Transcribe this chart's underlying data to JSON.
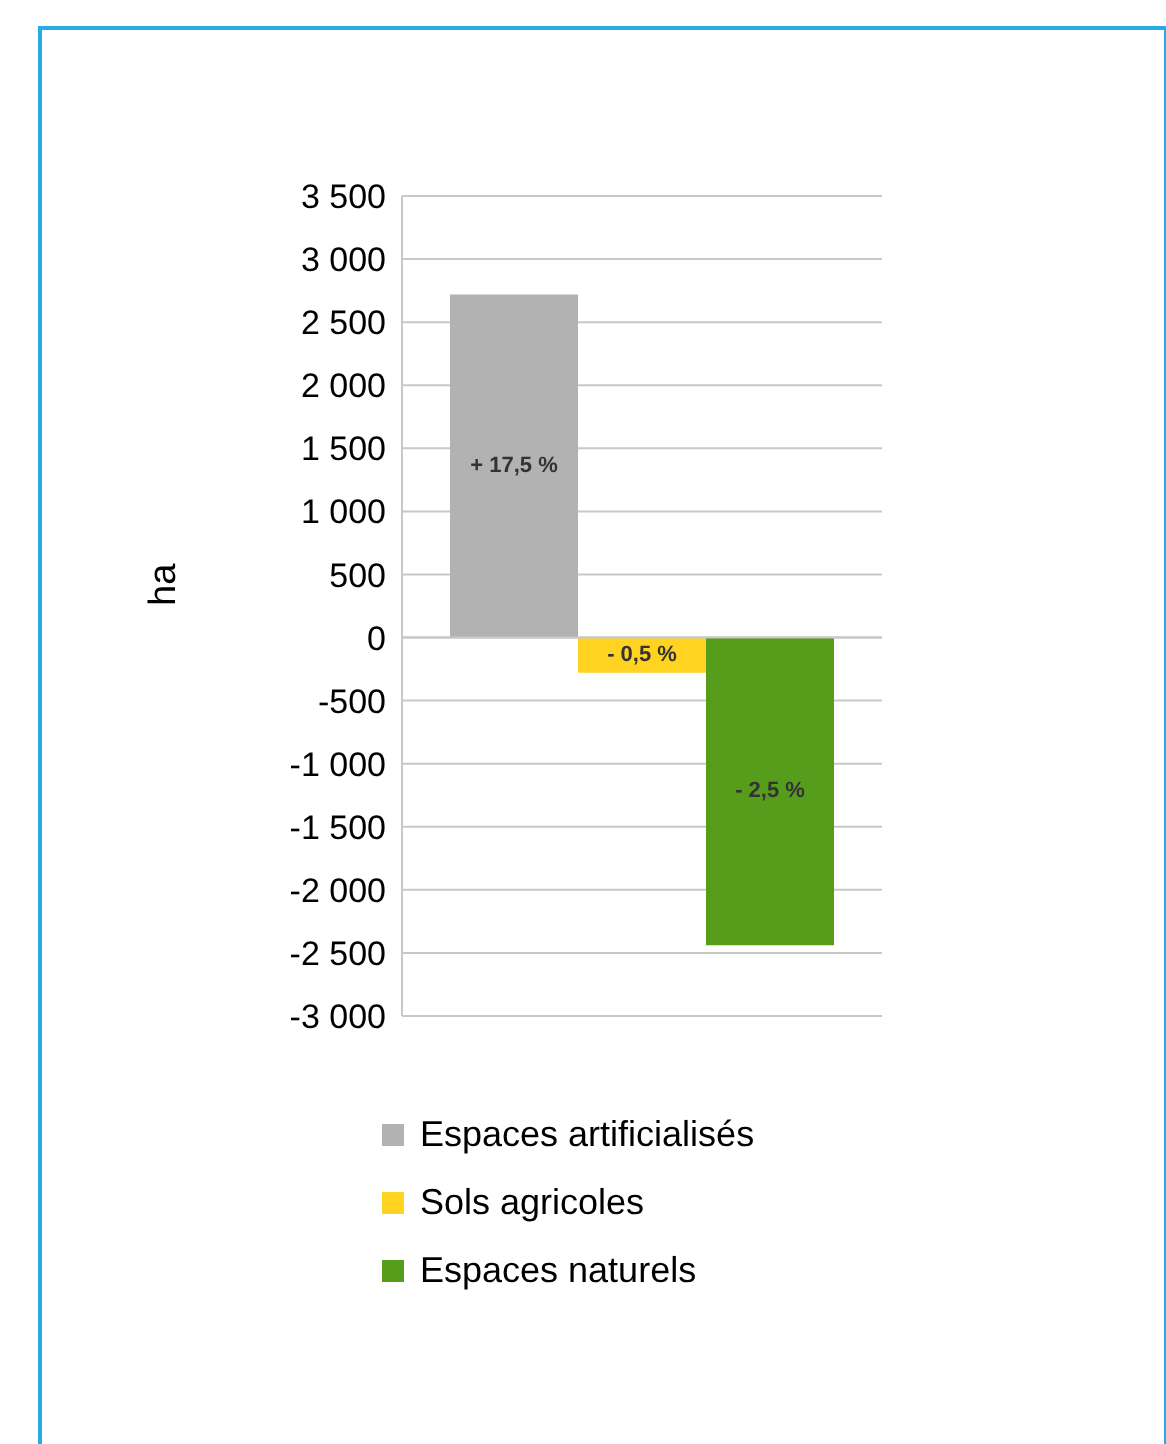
{
  "chart_data": {
    "type": "bar",
    "ylabel": "ha",
    "categories": [
      null
    ],
    "series": [
      {
        "name": "Espaces artificialisés",
        "color": "#b2b2b2",
        "values": [
          2720
        ]
      },
      {
        "name": "Sols agricoles",
        "color": "#ffd320",
        "values": [
          -280
        ]
      },
      {
        "name": "Espaces naturels",
        "color": "#579d1c",
        "values": [
          -2440
        ]
      }
    ],
    "annotations": [
      "+ 17,5 %",
      "- 0,5 %",
      "- 2,5 %"
    ],
    "ylim": [
      -3000,
      3500
    ],
    "yticks": [
      {
        "value": 3500,
        "label": "3 500"
      },
      {
        "value": 3000,
        "label": "3 000"
      },
      {
        "value": 2500,
        "label": "2 500"
      },
      {
        "value": 2000,
        "label": "2 000"
      },
      {
        "value": 1500,
        "label": "1 500"
      },
      {
        "value": 1000,
        "label": "1 000"
      },
      500,
      0,
      -500,
      {
        "value": -1000,
        "label": "-1 000"
      },
      {
        "value": -1500,
        "label": "-1 500"
      },
      {
        "value": -2000,
        "label": "-2 000"
      },
      {
        "value": -2500,
        "label": "-2 500"
      },
      {
        "value": -3000,
        "label": "-3 000"
      }
    ],
    "grid": "y",
    "legend": "bottom"
  }
}
